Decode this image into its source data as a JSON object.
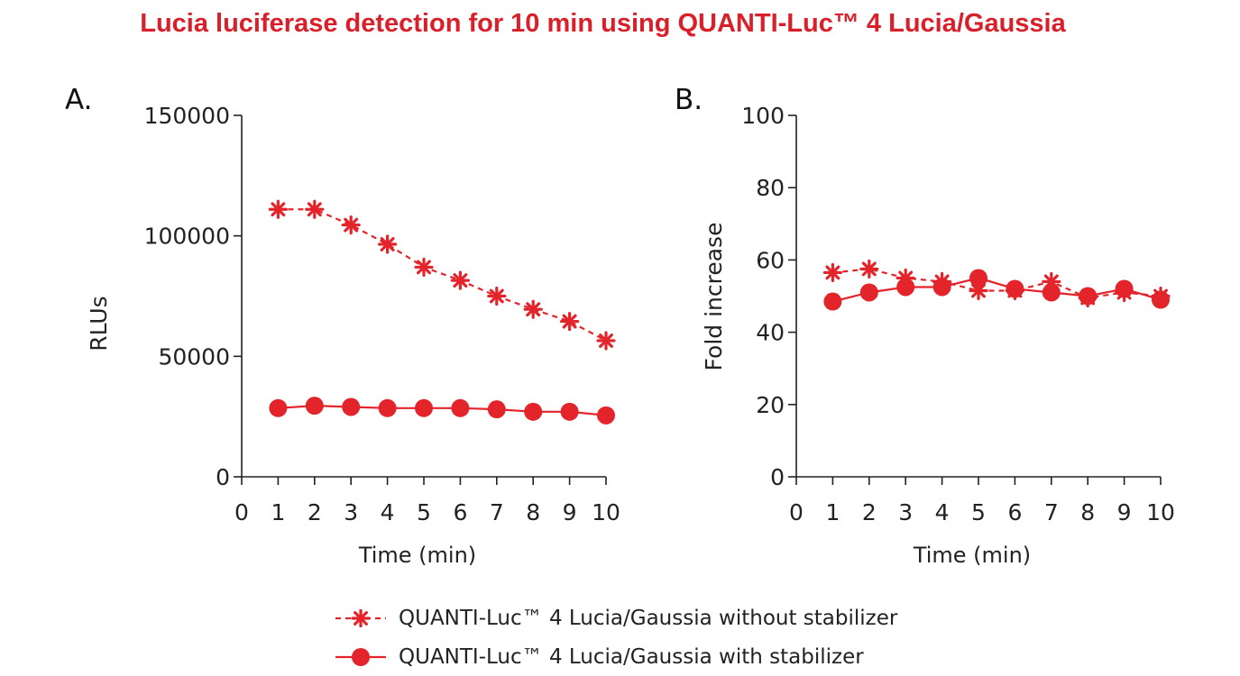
{
  "title": "Lucia luciferase detection for 10 min using QUANTI-Luc™ 4 Lucia/Gaussia",
  "colors": {
    "title": "#d9202a",
    "series": "#e3242b",
    "axis": "#222222"
  },
  "chart_data": [
    {
      "panel_label": "A.",
      "type": "line",
      "xlabel": "Time (min)",
      "ylabel": "RLUs",
      "xlim": [
        0,
        10
      ],
      "ylim": [
        0,
        150000
      ],
      "x_ticks": [
        "0",
        "1",
        "2",
        "3",
        "4",
        "5",
        "6",
        "7",
        "8",
        "9",
        "10"
      ],
      "y_ticks": [
        "0",
        "50000",
        "100000",
        "150000"
      ],
      "y_tick_values": [
        0,
        50000,
        100000,
        150000
      ],
      "x": [
        1,
        2,
        3,
        4,
        5,
        6,
        7,
        8,
        9,
        10
      ],
      "series": [
        {
          "name": "QUANTI-Luc™ 4 Lucia/Gaussia without stabilizer",
          "marker": "asterisk",
          "line": "dashed",
          "values": [
            111000,
            111000,
            104500,
            96500,
            87000,
            81500,
            75000,
            69500,
            64500,
            56500
          ]
        },
        {
          "name": "QUANTI-Luc™ 4 Lucia/Gaussia with stabilizer",
          "marker": "circle",
          "line": "solid",
          "values": [
            28500,
            29500,
            29000,
            28500,
            28500,
            28500,
            28000,
            27000,
            27000,
            25500
          ]
        }
      ]
    },
    {
      "panel_label": "B.",
      "type": "line",
      "xlabel": "Time (min)",
      "ylabel": "Fold increase",
      "xlim": [
        0,
        10
      ],
      "ylim": [
        0,
        100
      ],
      "x_ticks": [
        "0",
        "1",
        "2",
        "3",
        "4",
        "5",
        "6",
        "7",
        "8",
        "9",
        "10"
      ],
      "y_ticks": [
        "0",
        "20",
        "40",
        "60",
        "80",
        "100"
      ],
      "y_tick_values": [
        0,
        20,
        40,
        60,
        80,
        100
      ],
      "x": [
        1,
        2,
        3,
        4,
        5,
        6,
        7,
        8,
        9,
        10
      ],
      "series": [
        {
          "name": "QUANTI-Luc™ 4 Lucia/Gaussia without stabilizer",
          "marker": "asterisk",
          "line": "dashed",
          "values": [
            56.5,
            57.5,
            55,
            54,
            51.5,
            51.5,
            54,
            49.5,
            51,
            50
          ]
        },
        {
          "name": "QUANTI-Luc™ 4 Lucia/Gaussia with stabilizer",
          "marker": "circle",
          "line": "solid",
          "values": [
            48.5,
            51,
            52.5,
            52.5,
            55,
            52,
            51,
            50,
            52,
            49
          ]
        }
      ]
    }
  ],
  "legend": [
    {
      "label": "QUANTI-Luc™ 4 Lucia/Gaussia without stabilizer",
      "marker": "asterisk",
      "line": "dashed"
    },
    {
      "label": "QUANTI-Luc™ 4 Lucia/Gaussia with stabilizer",
      "marker": "circle",
      "line": "solid"
    }
  ]
}
